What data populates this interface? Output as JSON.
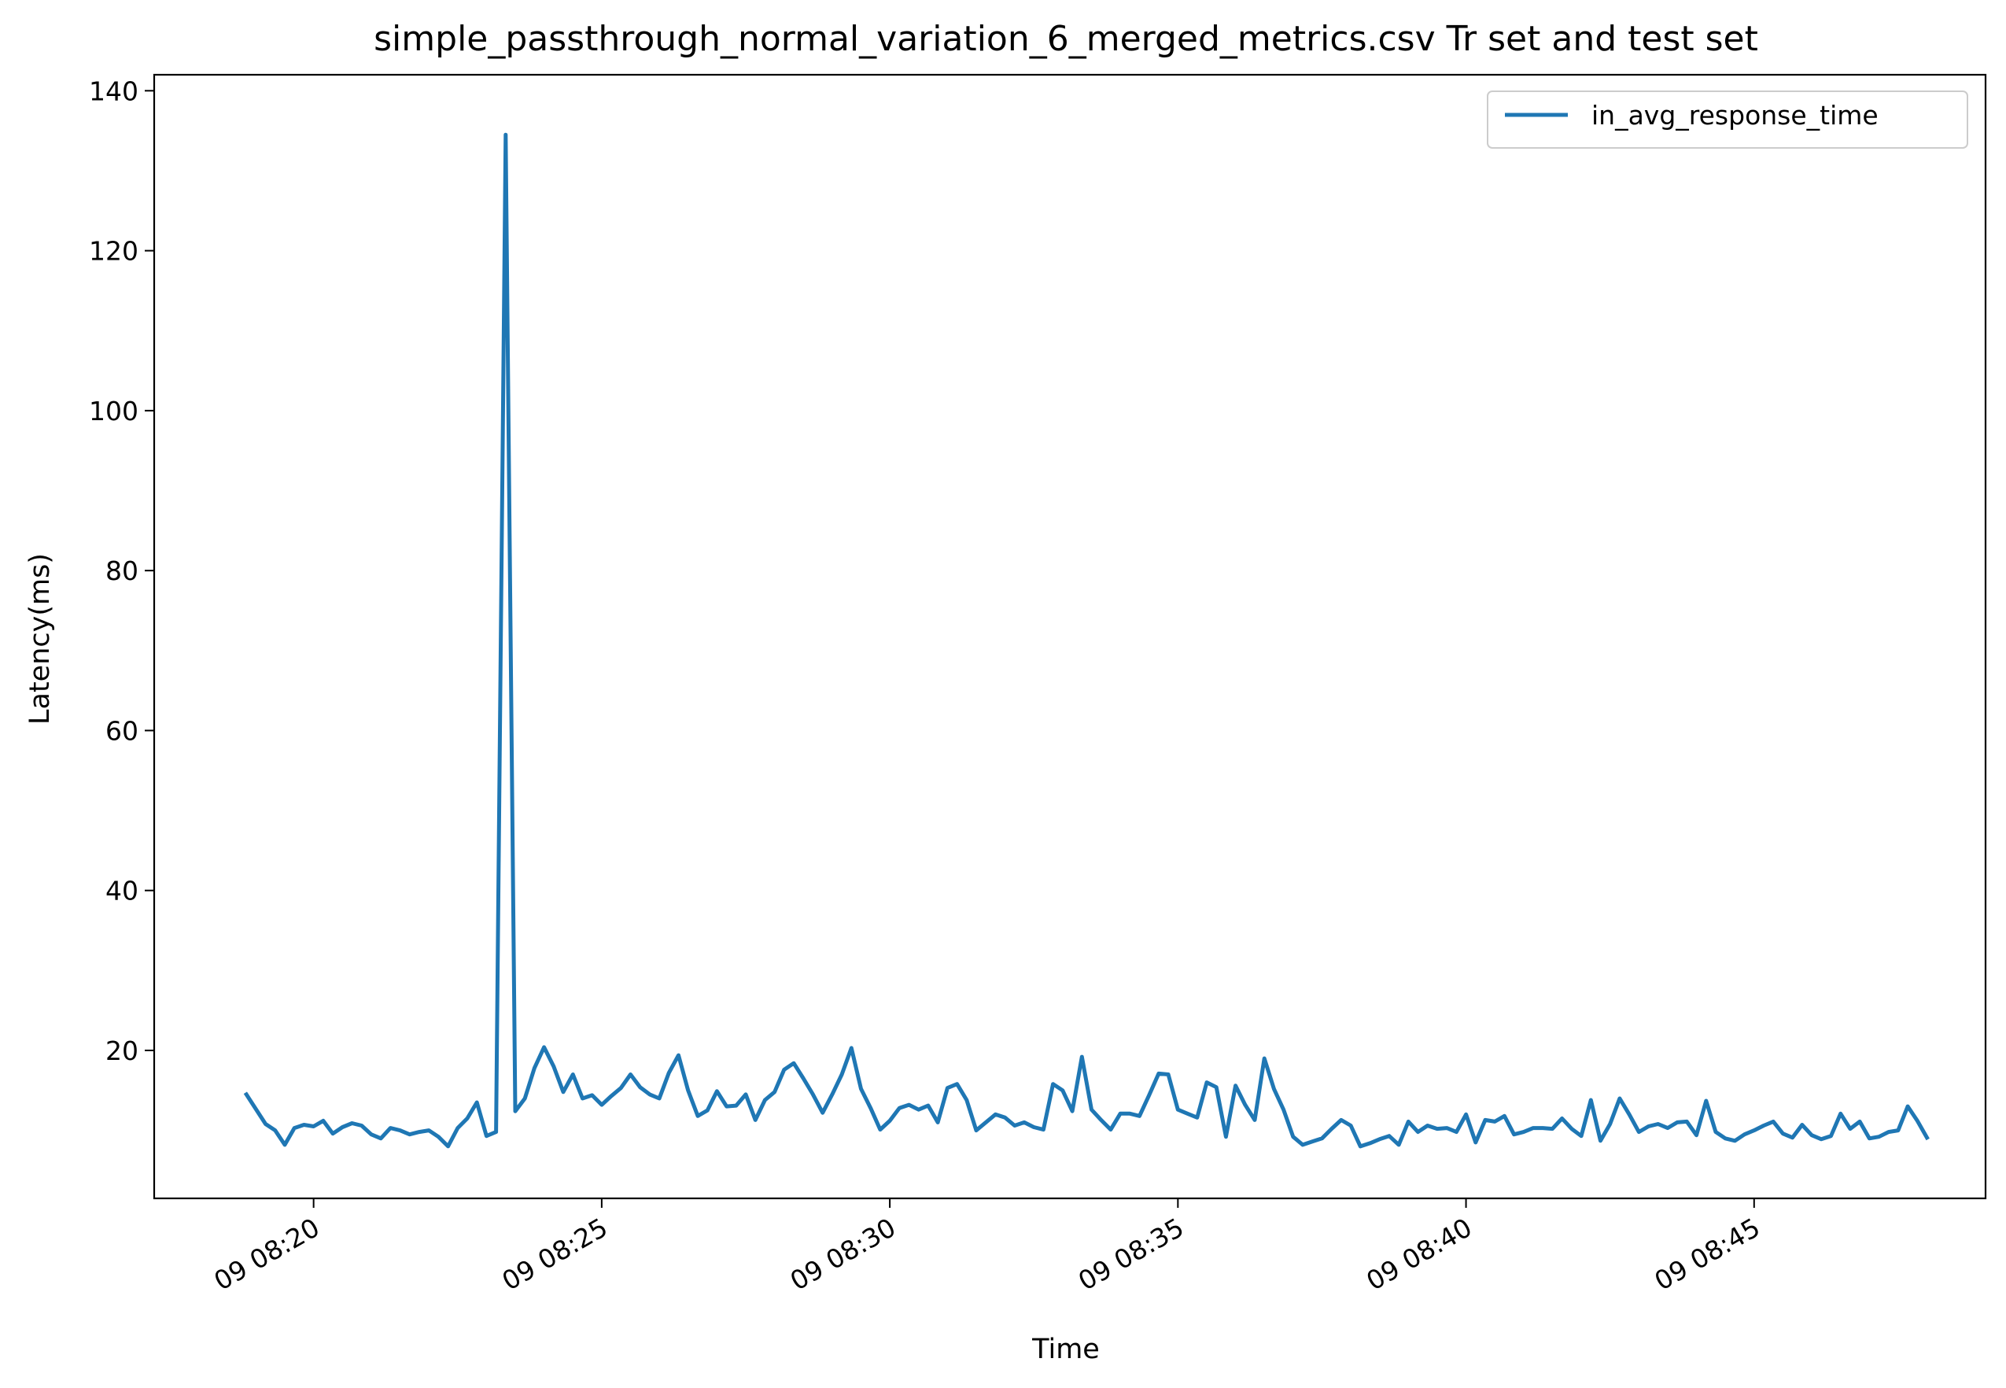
{
  "chart_data": {
    "type": "line",
    "title": "simple_passthrough_normal_variation_6_merged_metrics.csv Tr set and test set",
    "xlabel": "Time",
    "ylabel": "Latency(ms)",
    "x_range": [
      "09 08:17:14",
      "09 08:49:01"
    ],
    "ylim": [
      1.5,
      142
    ],
    "y_ticks": [
      20,
      40,
      60,
      80,
      100,
      120,
      140
    ],
    "x_tick_labels": [
      "09 08:20",
      "09 08:25",
      "09 08:30",
      "09 08:35",
      "09 08:40",
      "09 08:45"
    ],
    "grid": false,
    "legend_position": "top-right",
    "series": [
      {
        "name": "in_avg_response_time",
        "color": "#1f77b4",
        "x": [
          "09 08:18:50",
          "09 08:19:10",
          "09 08:19:20",
          "09 08:19:30",
          "09 08:19:40",
          "09 08:19:50",
          "09 08:20:00",
          "09 08:20:10",
          "09 08:20:20",
          "09 08:20:30",
          "09 08:20:40",
          "09 08:20:50",
          "09 08:21:00",
          "09 08:21:10",
          "09 08:21:20",
          "09 08:21:30",
          "09 08:21:40",
          "09 08:21:50",
          "09 08:22:00",
          "09 08:22:10",
          "09 08:22:20",
          "09 08:22:30",
          "09 08:22:40",
          "09 08:22:50",
          "09 08:23:00",
          "09 08:23:10",
          "09 08:23:20",
          "09 08:23:30",
          "09 08:23:40",
          "09 08:23:50",
          "09 08:24:00",
          "09 08:24:10",
          "09 08:24:20",
          "09 08:24:30",
          "09 08:24:40",
          "09 08:24:50",
          "09 08:25:00",
          "09 08:25:10",
          "09 08:25:20",
          "09 08:25:30",
          "09 08:25:40",
          "09 08:25:50",
          "09 08:26:00",
          "09 08:26:10",
          "09 08:26:20",
          "09 08:26:30",
          "09 08:26:40",
          "09 08:26:50",
          "09 08:27:00",
          "09 08:27:10",
          "09 08:27:20",
          "09 08:27:30",
          "09 08:27:40",
          "09 08:27:50",
          "09 08:28:00",
          "09 08:28:10",
          "09 08:28:20",
          "09 08:28:30",
          "09 08:28:40",
          "09 08:28:50",
          "09 08:29:00",
          "09 08:29:10",
          "09 08:29:20",
          "09 08:29:30",
          "09 08:29:40",
          "09 08:29:50",
          "09 08:30:00",
          "09 08:30:10",
          "09 08:30:20",
          "09 08:30:30",
          "09 08:30:40",
          "09 08:30:50",
          "09 08:31:00",
          "09 08:31:10",
          "09 08:31:20",
          "09 08:31:30",
          "09 08:31:40",
          "09 08:31:50",
          "09 08:32:00",
          "09 08:32:10",
          "09 08:32:20",
          "09 08:32:30",
          "09 08:32:40",
          "09 08:32:50",
          "09 08:33:00",
          "09 08:33:10",
          "09 08:33:20",
          "09 08:33:30",
          "09 08:33:40",
          "09 08:33:50",
          "09 08:34:00",
          "09 08:34:10",
          "09 08:34:20",
          "09 08:34:30",
          "09 08:34:40",
          "09 08:34:50",
          "09 08:35:00",
          "09 08:35:10",
          "09 08:35:20",
          "09 08:35:30",
          "09 08:35:40",
          "09 08:35:50",
          "09 08:36:00",
          "09 08:36:10",
          "09 08:36:20",
          "09 08:36:30",
          "09 08:36:40",
          "09 08:36:50",
          "09 08:37:00",
          "09 08:37:10",
          "09 08:37:20",
          "09 08:37:30",
          "09 08:37:40",
          "09 08:37:50",
          "09 08:38:00",
          "09 08:38:10",
          "09 08:38:20",
          "09 08:38:30",
          "09 08:38:40",
          "09 08:38:50",
          "09 08:39:00",
          "09 08:39:10",
          "09 08:39:20",
          "09 08:39:30",
          "09 08:39:40",
          "09 08:39:50",
          "09 08:40:00",
          "09 08:40:10",
          "09 08:40:20",
          "09 08:40:30",
          "09 08:40:40",
          "09 08:40:50",
          "09 08:41:00",
          "09 08:41:10",
          "09 08:41:20",
          "09 08:41:30",
          "09 08:41:40",
          "09 08:41:50",
          "09 08:42:00",
          "09 08:42:10",
          "09 08:42:20",
          "09 08:42:30",
          "09 08:42:40",
          "09 08:42:50",
          "09 08:43:00",
          "09 08:43:10",
          "09 08:43:20",
          "09 08:43:30",
          "09 08:43:40",
          "09 08:43:50",
          "09 08:44:00",
          "09 08:44:10",
          "09 08:44:20",
          "09 08:44:30",
          "09 08:44:40",
          "09 08:44:50",
          "09 08:45:00",
          "09 08:45:10",
          "09 08:45:20",
          "09 08:45:30",
          "09 08:45:40",
          "09 08:45:50",
          "09 08:46:00",
          "09 08:46:10",
          "09 08:46:20",
          "09 08:46:30",
          "09 08:46:40",
          "09 08:46:50",
          "09 08:47:00",
          "09 08:47:10",
          "09 08:47:20",
          "09 08:47:30",
          "09 08:47:40",
          "09 08:47:50",
          "09 08:48:00"
        ],
        "y": [
          14.5,
          10.8,
          10.0,
          8.2,
          10.3,
          10.7,
          10.5,
          11.2,
          9.6,
          10.4,
          10.9,
          10.6,
          9.5,
          9.0,
          10.3,
          10.0,
          9.5,
          9.8,
          10.0,
          9.2,
          8.0,
          10.3,
          11.5,
          13.5,
          9.3,
          9.8,
          134.5,
          12.4,
          14.0,
          17.8,
          20.4,
          18.0,
          14.8,
          17.0,
          14.0,
          14.4,
          13.2,
          14.3,
          15.3,
          17.0,
          15.4,
          14.5,
          14.0,
          17.2,
          19.4,
          15.0,
          11.8,
          12.5,
          14.9,
          13.0,
          13.1,
          14.5,
          11.3,
          13.8,
          14.8,
          17.6,
          18.4,
          16.5,
          14.5,
          12.2,
          14.5,
          17.0,
          20.3,
          15.2,
          12.8,
          10.1,
          11.2,
          12.8,
          13.2,
          12.6,
          13.1,
          11.0,
          15.3,
          15.8,
          13.8,
          10.0,
          11.0,
          12.0,
          11.6,
          10.6,
          11.0,
          10.4,
          10.1,
          15.8,
          15.0,
          12.4,
          19.2,
          12.6,
          11.3,
          10.1,
          12.1,
          12.1,
          11.8,
          14.4,
          17.1,
          17.0,
          12.6,
          12.1,
          11.6,
          16.0,
          15.4,
          9.2,
          15.6,
          13.2,
          11.3,
          19.0,
          15.2,
          12.6,
          9.2,
          8.2,
          8.6,
          9.0,
          10.2,
          11.3,
          10.6,
          8.0,
          8.4,
          8.9,
          9.3,
          8.2,
          11.1,
          9.8,
          10.6,
          10.2,
          10.3,
          9.8,
          12.0,
          8.5,
          11.3,
          11.1,
          11.8,
          9.5,
          9.8,
          10.3,
          10.3,
          10.2,
          11.5,
          10.2,
          9.3,
          13.8,
          8.7,
          10.8,
          14.0,
          12.0,
          9.8,
          10.5,
          10.8,
          10.3,
          11.0,
          11.1,
          9.4,
          13.7,
          9.8,
          9.0,
          8.7,
          9.5,
          10.0,
          10.6,
          11.1,
          9.6,
          9.1,
          10.7,
          9.4,
          8.9,
          9.3,
          12.1,
          10.2,
          11.1,
          9.0,
          9.2,
          9.8,
          10.0,
          13.0,
          11.2,
          9.1
        ]
      }
    ]
  }
}
